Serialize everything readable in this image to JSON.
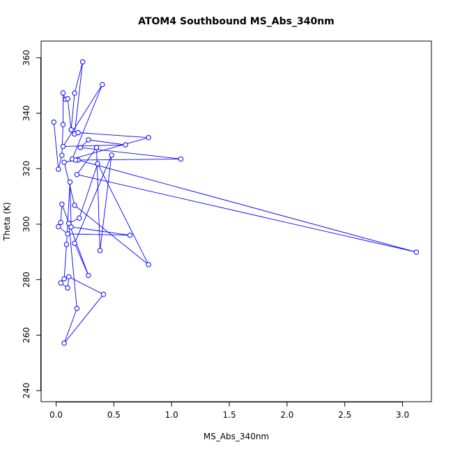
{
  "chart_data": {
    "type": "line",
    "title": "ATOM4 Southbound MS_Abs_340nm",
    "xlabel": "MS_Abs_340nm",
    "ylabel": "Theta (K)",
    "xlim": [
      -0.13,
      3.25
    ],
    "ylim": [
      236,
      366
    ],
    "x_ticks": [
      0.0,
      0.5,
      1.0,
      1.5,
      2.0,
      2.5,
      3.0
    ],
    "x_tick_labels": [
      "0.0",
      "0.5",
      "1.0",
      "1.5",
      "2.0",
      "2.5",
      "3.0"
    ],
    "y_ticks": [
      240,
      260,
      280,
      300,
      320,
      340,
      360
    ],
    "y_tick_labels": [
      "240",
      "260",
      "280",
      "300",
      "320",
      "340",
      "360"
    ],
    "grid": false,
    "series": [
      {
        "color": "#0000ff",
        "marker": "open-circle",
        "points": [
          [
            -0.02,
            336.8
          ],
          [
            0.02,
            319.8
          ],
          [
            0.05,
            324.8
          ],
          [
            0.06,
            335.9
          ],
          [
            0.06,
            347.3
          ],
          [
            0.08,
            345.0
          ],
          [
            0.1,
            345.2
          ],
          [
            0.13,
            334.0
          ],
          [
            0.16,
            347.2
          ],
          [
            0.23,
            358.5
          ],
          [
            0.16,
            332.5
          ],
          [
            0.19,
            333.0
          ],
          [
            0.8,
            331.2
          ],
          [
            0.14,
            323.5
          ],
          [
            0.4,
            350.3
          ],
          [
            0.06,
            328.0
          ],
          [
            0.6,
            328.6
          ],
          [
            0.28,
            330.4
          ],
          [
            0.21,
            327.6
          ],
          [
            1.08,
            323.5
          ],
          [
            0.19,
            323.1
          ],
          [
            3.12,
            289.9
          ],
          [
            0.18,
            317.9
          ],
          [
            0.35,
            327.6
          ],
          [
            0.38,
            290.5
          ],
          [
            0.48,
            324.9
          ],
          [
            0.16,
            293.1
          ],
          [
            0.28,
            281.5
          ],
          [
            0.05,
            307.2
          ],
          [
            0.04,
            300.6
          ],
          [
            0.02,
            299.1
          ],
          [
            0.1,
            296.5
          ],
          [
            0.64,
            296.0
          ],
          [
            0.13,
            299.0
          ],
          [
            0.12,
            315.2
          ],
          [
            0.09,
            292.7
          ],
          [
            0.07,
            280.3
          ],
          [
            0.04,
            278.8
          ],
          [
            0.1,
            277.0
          ],
          [
            0.11,
            281.0
          ],
          [
            0.41,
            274.7
          ],
          [
            0.07,
            257.1
          ],
          [
            0.18,
            269.6
          ],
          [
            0.11,
            300.3
          ],
          [
            0.2,
            302.2
          ],
          [
            0.36,
            321.8
          ],
          [
            0.8,
            285.4
          ],
          [
            0.16,
            306.8
          ],
          [
            0.07,
            322.3
          ],
          [
            0.17,
            323.1
          ]
        ]
      }
    ]
  }
}
